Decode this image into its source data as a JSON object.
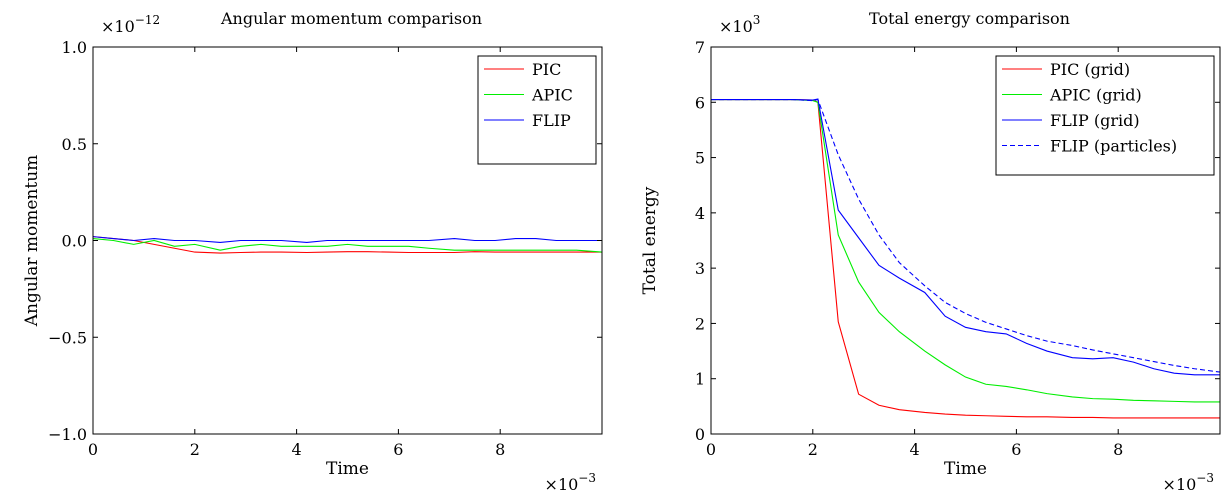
{
  "chart_data": [
    {
      "type": "line",
      "title": "Angular momentum comparison",
      "xlabel": "Time",
      "ylabel": "Angular momentum",
      "x_multiplier": {
        "base": "×10",
        "exp": "−3"
      },
      "y_multiplier": {
        "base": "×10",
        "exp": "−12"
      },
      "xlim": [
        0,
        0.01
      ],
      "ylim": [
        -1.0,
        1.0
      ],
      "xticks": [
        0,
        0.002,
        0.004,
        0.006,
        0.008
      ],
      "xtick_labels": [
        "0",
        "2",
        "4",
        "6",
        "8"
      ],
      "yticks": [
        -1.0,
        -0.5,
        0.0,
        0.5,
        1.0
      ],
      "ytick_labels": [
        "−1.0",
        "−0.5",
        "0.0",
        "0.5",
        "1.0"
      ],
      "legend_position": "top-right",
      "x": [
        0,
        0.0004,
        0.0008,
        0.0012,
        0.0016,
        0.002,
        0.0025,
        0.0029,
        0.0033,
        0.0037,
        0.0042,
        0.0046,
        0.005,
        0.0054,
        0.0058,
        0.0062,
        0.0066,
        0.0071,
        0.0075,
        0.0079,
        0.0083,
        0.0087,
        0.0091,
        0.0095,
        0.01
      ],
      "series": [
        {
          "name": "PIC",
          "color": "#ff0000",
          "dash": "solid",
          "values": [
            0.02,
            0.01,
            0.0,
            -0.02,
            -0.04,
            -0.06,
            -0.065,
            -0.062,
            -0.06,
            -0.06,
            -0.062,
            -0.06,
            -0.058,
            -0.058,
            -0.06,
            -0.062,
            -0.062,
            -0.062,
            -0.058,
            -0.06,
            -0.06,
            -0.06,
            -0.06,
            -0.06,
            -0.06
          ]
        },
        {
          "name": "APIC",
          "color": "#00ee00",
          "dash": "solid",
          "values": [
            0.01,
            0.0,
            -0.02,
            0.0,
            -0.03,
            -0.02,
            -0.05,
            -0.03,
            -0.02,
            -0.03,
            -0.03,
            -0.03,
            -0.02,
            -0.03,
            -0.03,
            -0.03,
            -0.04,
            -0.05,
            -0.05,
            -0.05,
            -0.05,
            -0.05,
            -0.05,
            -0.05,
            -0.06
          ]
        },
        {
          "name": "FLIP",
          "color": "#0000ff",
          "dash": "solid",
          "values": [
            0.02,
            0.01,
            0.0,
            0.01,
            0.0,
            0.0,
            -0.01,
            0.0,
            0.0,
            0.0,
            -0.01,
            0.0,
            0.0,
            0.0,
            0.0,
            0.0,
            0.0,
            0.01,
            0.0,
            0.0,
            0.01,
            0.01,
            0.0,
            0.0,
            0.0
          ]
        }
      ]
    },
    {
      "type": "line",
      "title": "Total energy comparison",
      "xlabel": "Time",
      "ylabel": "Total energy",
      "x_multiplier": {
        "base": "×10",
        "exp": "−3"
      },
      "y_multiplier": {
        "base": "×10",
        "exp": "3"
      },
      "xlim": [
        0,
        0.01
      ],
      "ylim": [
        0,
        7
      ],
      "xticks": [
        0,
        0.002,
        0.004,
        0.006,
        0.008
      ],
      "xtick_labels": [
        "0",
        "2",
        "4",
        "6",
        "8"
      ],
      "yticks": [
        0,
        1,
        2,
        3,
        4,
        5,
        6,
        7
      ],
      "ytick_labels": [
        "0",
        "1",
        "2",
        "3",
        "4",
        "5",
        "6",
        "7"
      ],
      "legend_position": "top-right",
      "x": [
        0,
        0.0004,
        0.0008,
        0.0012,
        0.0016,
        0.002,
        0.0021,
        0.0025,
        0.0029,
        0.0033,
        0.0037,
        0.0042,
        0.0046,
        0.005,
        0.0054,
        0.0058,
        0.0062,
        0.0066,
        0.0071,
        0.0075,
        0.0079,
        0.0083,
        0.0087,
        0.0091,
        0.0095,
        0.01
      ],
      "series": [
        {
          "name": "PIC (grid)",
          "color": "#ff0000",
          "dash": "solid",
          "values": [
            6.05,
            6.05,
            6.05,
            6.05,
            6.05,
            6.04,
            6.0,
            2.03,
            0.72,
            0.52,
            0.44,
            0.39,
            0.36,
            0.34,
            0.33,
            0.32,
            0.31,
            0.31,
            0.3,
            0.3,
            0.29,
            0.29,
            0.29,
            0.29,
            0.29,
            0.29
          ]
        },
        {
          "name": "APIC (grid)",
          "color": "#00ee00",
          "dash": "solid",
          "values": [
            6.05,
            6.05,
            6.05,
            6.05,
            6.05,
            6.03,
            6.0,
            3.6,
            2.75,
            2.2,
            1.85,
            1.5,
            1.25,
            1.03,
            0.9,
            0.86,
            0.8,
            0.73,
            0.67,
            0.64,
            0.63,
            0.61,
            0.6,
            0.59,
            0.58,
            0.58
          ]
        },
        {
          "name": "FLIP (grid)",
          "color": "#0000ff",
          "dash": "solid",
          "values": [
            6.05,
            6.05,
            6.05,
            6.05,
            6.05,
            6.04,
            6.06,
            4.05,
            3.55,
            3.05,
            2.82,
            2.56,
            2.13,
            1.93,
            1.85,
            1.81,
            1.64,
            1.5,
            1.38,
            1.36,
            1.38,
            1.3,
            1.18,
            1.1,
            1.07,
            1.07
          ]
        },
        {
          "name": "FLIP (particles)",
          "color": "#0000ff",
          "dash": "dashed",
          "values": [
            6.05,
            6.05,
            6.05,
            6.05,
            6.05,
            6.03,
            6.05,
            5.05,
            4.25,
            3.6,
            3.1,
            2.68,
            2.38,
            2.18,
            2.02,
            1.9,
            1.78,
            1.68,
            1.6,
            1.52,
            1.45,
            1.38,
            1.31,
            1.24,
            1.18,
            1.12
          ]
        }
      ]
    }
  ]
}
